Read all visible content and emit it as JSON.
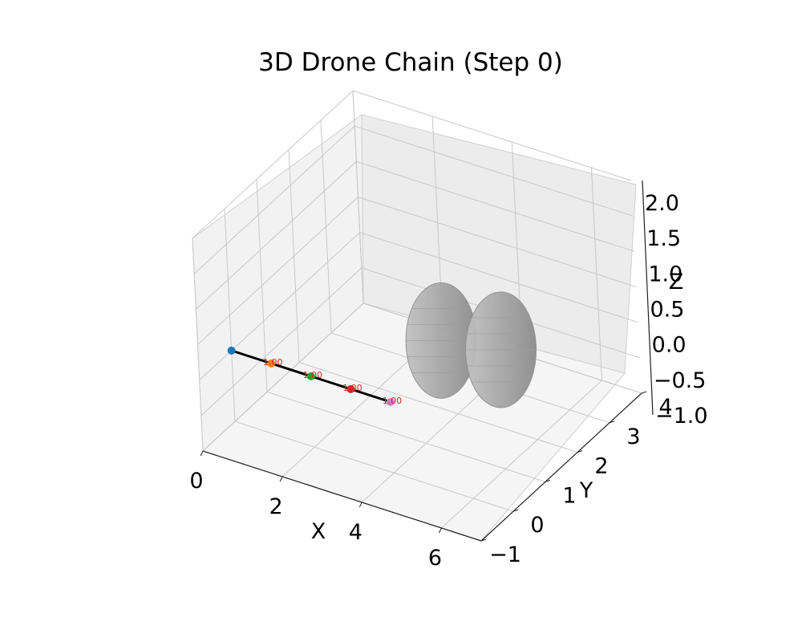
{
  "chart_data": {
    "type": "scatter",
    "projection": "3d",
    "title": "3D Drone Chain (Step 0)",
    "xlabel": "X",
    "ylabel": "Y",
    "zlabel": "Z",
    "xlim": [
      0,
      7
    ],
    "ylim": [
      -1,
      4
    ],
    "zlim": [
      -1,
      2
    ],
    "x_ticks": [
      "0",
      "2",
      "4",
      "6"
    ],
    "y_ticks": [
      "−1",
      "0",
      "1",
      "2",
      "3",
      "4"
    ],
    "z_ticks": [
      "−1.0",
      "−0.5",
      "0.0",
      "0.5",
      "1.0",
      "1.5",
      "2.0"
    ],
    "grid": true,
    "chain": {
      "color": "#000000",
      "drones": [
        {
          "x": 0,
          "y": 0,
          "z": 0,
          "color": "#1f77b4",
          "label": ""
        },
        {
          "x": 1,
          "y": 0,
          "z": 0,
          "color": "#ff7f0e",
          "label": "1.00"
        },
        {
          "x": 2,
          "y": 0,
          "z": 0,
          "color": "#2ca02c",
          "label": "1.00"
        },
        {
          "x": 3,
          "y": 0,
          "z": 0,
          "color": "#d62728",
          "label": "1.00"
        },
        {
          "x": 4,
          "y": 0,
          "z": 0,
          "color": "#e377c2",
          "label": "1.00"
        }
      ]
    },
    "obstacles": [
      {
        "shape": "ellipsoid",
        "center": [
          4,
          1.6,
          0.2
        ],
        "radius": 1.0,
        "color": "#9a9a9a"
      },
      {
        "shape": "ellipsoid",
        "center": [
          5,
          2.2,
          0
        ],
        "radius": 1.0,
        "color": "#9a9a9a"
      }
    ]
  }
}
